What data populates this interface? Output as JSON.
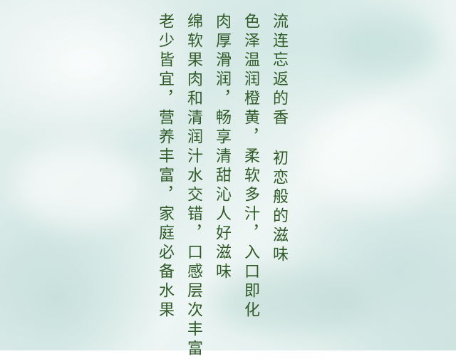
{
  "poem": {
    "columns": [
      "流连忘返的香 初恋般的滋味",
      "色泽温润橙黄，柔软多汁，入口即化",
      "肉厚滑润，畅享清甜沁人好滋味",
      "绵软果肉和清润汁水交错，口感层次丰富",
      "老少皆宜，营养丰富，家庭必备水果"
    ],
    "text_color": "#2f5a28"
  },
  "background": {
    "base_color": "#dcecea"
  }
}
